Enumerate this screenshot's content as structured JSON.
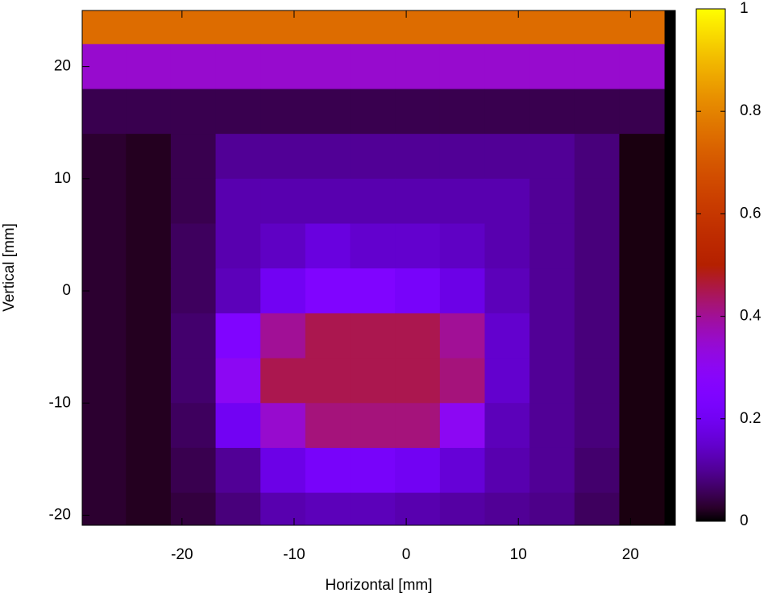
{
  "chart_data": {
    "type": "heatmap",
    "xlabel": "Horizontal [mm]",
    "ylabel": "Vertical [mm]",
    "xlim": [
      -28.9,
      24
    ],
    "ylim": [
      -20.9,
      25
    ],
    "xticks": [
      -20,
      -10,
      0,
      10,
      20
    ],
    "yticks": [
      -20,
      -10,
      0,
      10,
      20
    ],
    "colormap": "gnuplot",
    "cblim": [
      0,
      1
    ],
    "cbticks": [
      0,
      0.2,
      0.4,
      0.6,
      0.8,
      1
    ],
    "x": [
      -27,
      -23,
      -19,
      -15,
      -11,
      -7,
      -3,
      1,
      5,
      9,
      13,
      17,
      21
    ],
    "y": [
      24,
      20,
      16,
      12,
      8,
      4,
      0,
      -4,
      -8,
      -12,
      -16,
      -20
    ],
    "z": [
      [
        0.75,
        0.75,
        0.75,
        0.75,
        0.75,
        0.75,
        0.75,
        0.75,
        0.75,
        0.75,
        0.75,
        0.75,
        0.75
      ],
      [
        0.35,
        0.35,
        0.35,
        0.35,
        0.35,
        0.35,
        0.35,
        0.35,
        0.35,
        0.35,
        0.35,
        0.35,
        0.35
      ],
      [
        0.05,
        0.05,
        0.05,
        0.05,
        0.05,
        0.05,
        0.05,
        0.05,
        0.05,
        0.05,
        0.05,
        0.05,
        0.05
      ],
      [
        0.03,
        0.02,
        0.05,
        0.1,
        0.1,
        0.1,
        0.1,
        0.1,
        0.1,
        0.1,
        0.1,
        0.08,
        0.01
      ],
      [
        0.03,
        0.02,
        0.05,
        0.12,
        0.12,
        0.12,
        0.12,
        0.12,
        0.12,
        0.12,
        0.1,
        0.08,
        0.01
      ],
      [
        0.03,
        0.02,
        0.06,
        0.12,
        0.14,
        0.17,
        0.15,
        0.15,
        0.14,
        0.12,
        0.1,
        0.08,
        0.01
      ],
      [
        0.03,
        0.02,
        0.06,
        0.13,
        0.2,
        0.25,
        0.25,
        0.22,
        0.18,
        0.13,
        0.1,
        0.08,
        0.01
      ],
      [
        0.03,
        0.02,
        0.07,
        0.25,
        0.4,
        0.45,
        0.45,
        0.45,
        0.4,
        0.15,
        0.1,
        0.08,
        0.01
      ],
      [
        0.03,
        0.02,
        0.07,
        0.3,
        0.45,
        0.45,
        0.45,
        0.45,
        0.42,
        0.15,
        0.1,
        0.08,
        0.01
      ],
      [
        0.03,
        0.02,
        0.06,
        0.2,
        0.35,
        0.42,
        0.42,
        0.42,
        0.3,
        0.13,
        0.1,
        0.08,
        0.01
      ],
      [
        0.03,
        0.02,
        0.05,
        0.1,
        0.18,
        0.22,
        0.22,
        0.2,
        0.16,
        0.12,
        0.1,
        0.07,
        0.01
      ],
      [
        0.03,
        0.02,
        0.04,
        0.08,
        0.12,
        0.13,
        0.13,
        0.12,
        0.11,
        0.1,
        0.09,
        0.06,
        0.01
      ]
    ]
  }
}
